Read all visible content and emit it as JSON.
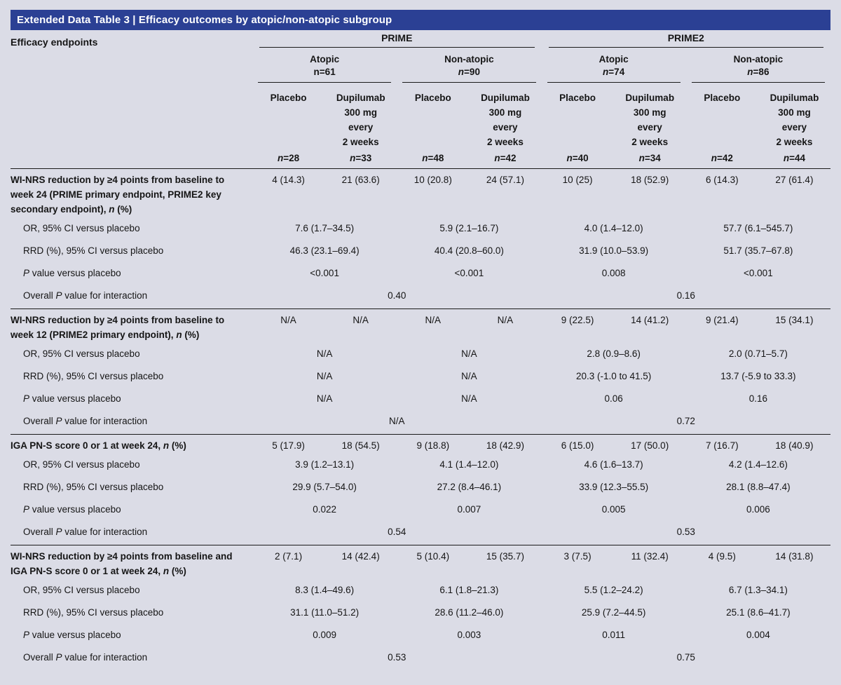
{
  "title_bar": {
    "text": "Extended Data Table 3 | Efficacy outcomes by atopic/non-atopic subgroup",
    "background_color": "#2b4094",
    "text_color": "#ffffff"
  },
  "page_background_color": "#dbdce6",
  "header": {
    "endpoint_col": "Efficacy endpoints",
    "trials": [
      {
        "name": "PRIME"
      },
      {
        "name": "PRIME2"
      }
    ],
    "subgroups": [
      {
        "label": "Atopic",
        "n_sym": "n",
        "n_val": "=61"
      },
      {
        "label": "Non-atopic",
        "n_sym": "n",
        "n_val": "=90"
      },
      {
        "label": "Atopic",
        "n_sym": "n",
        "n_val": "=74"
      },
      {
        "label": "Non-atopic",
        "n_sym": "n",
        "n_val": "=86"
      }
    ],
    "arms": [
      {
        "lines": [
          "Placebo"
        ],
        "n_sym": "n",
        "n_val": "=28"
      },
      {
        "lines": [
          "Dupilumab",
          "300 mg",
          "every",
          "2 weeks"
        ],
        "n_sym": "n",
        "n_val": "=33"
      },
      {
        "lines": [
          "Placebo"
        ],
        "n_sym": "n",
        "n_val": "=48"
      },
      {
        "lines": [
          "Dupilumab",
          "300 mg",
          "every",
          "2 weeks"
        ],
        "n_sym": "n",
        "n_val": "=42"
      },
      {
        "lines": [
          "Placebo"
        ],
        "n_sym": "n",
        "n_val": "=40"
      },
      {
        "lines": [
          "Dupilumab",
          "300 mg",
          "every",
          "2 weeks"
        ],
        "n_sym": "n",
        "n_val": "=34"
      },
      {
        "lines": [
          "Placebo"
        ],
        "n_sym": "n",
        "n_val": "=42"
      },
      {
        "lines": [
          "Dupilumab",
          "300 mg",
          "every",
          "2 weeks"
        ],
        "n_sym": "n",
        "n_val": "=44"
      }
    ]
  },
  "row_labels": {
    "or": "OR, 95% CI versus placebo",
    "rrd": "RRD (%), 95% CI versus placebo",
    "p_italic": "P",
    "p_rest": " value versus placebo",
    "overall_pre": "Overall ",
    "overall_italic": "P",
    "overall_post": " value for interaction"
  },
  "sections": [
    {
      "label_pre": "WI-NRS reduction by ≥4 points from baseline to week 24 (PRIME primary endpoint, PRIME2 key secondary endpoint), ",
      "label_italic": "n",
      "label_post": " (%)",
      "counts": [
        "4 (14.3)",
        "21 (63.6)",
        "10 (20.8)",
        "24 (57.1)",
        "10 (25)",
        "18 (52.9)",
        "6 (14.3)",
        "27 (61.4)"
      ],
      "or": [
        "7.6 (1.7–34.5)",
        "5.9 (2.1–16.7)",
        "4.0 (1.4–12.0)",
        "57.7 (6.1–545.7)"
      ],
      "rrd": [
        "46.3 (23.1–69.4)",
        "40.4 (20.8–60.0)",
        "31.9 (10.0–53.9)",
        "51.7 (35.7–67.8)"
      ],
      "p": [
        "<0.001",
        "<0.001",
        "0.008",
        "<0.001"
      ],
      "overall": [
        "0.40",
        "0.16"
      ]
    },
    {
      "label_pre": "WI-NRS reduction by ≥4 points from baseline to week 12 (PRIME2 primary endpoint), ",
      "label_italic": "n",
      "label_post": " (%)",
      "counts": [
        "N/A",
        "N/A",
        "N/A",
        "N/A",
        "9 (22.5)",
        "14 (41.2)",
        "9 (21.4)",
        "15 (34.1)"
      ],
      "or": [
        "N/A",
        "N/A",
        "2.8 (0.9–8.6)",
        "2.0 (0.71–5.7)"
      ],
      "rrd": [
        "N/A",
        "N/A",
        "20.3 (-1.0 to 41.5)",
        "13.7 (-5.9 to 33.3)"
      ],
      "p": [
        "N/A",
        "N/A",
        "0.06",
        "0.16"
      ],
      "overall": [
        "N/A",
        "0.72"
      ]
    },
    {
      "label_pre": "IGA PN-S score 0 or 1 at week 24, ",
      "label_italic": "n",
      "label_post": " (%)",
      "counts": [
        "5 (17.9)",
        "18 (54.5)",
        "9 (18.8)",
        "18 (42.9)",
        "6 (15.0)",
        "17 (50.0)",
        "7 (16.7)",
        "18 (40.9)"
      ],
      "or": [
        "3.9 (1.2–13.1)",
        "4.1 (1.4–12.0)",
        "4.6 (1.6–13.7)",
        "4.2 (1.4–12.6)"
      ],
      "rrd": [
        "29.9 (5.7–54.0)",
        "27.2 (8.4–46.1)",
        "33.9 (12.3–55.5)",
        "28.1 (8.8–47.4)"
      ],
      "p": [
        "0.022",
        "0.007",
        "0.005",
        "0.006"
      ],
      "overall": [
        "0.54",
        "0.53"
      ]
    },
    {
      "label_pre": "WI-NRS reduction by ≥4 points from baseline and IGA PN-S score 0 or 1 at week 24, ",
      "label_italic": "n",
      "label_post": " (%)",
      "counts": [
        "2 (7.1)",
        "14 (42.4)",
        "5 (10.4)",
        "15 (35.7)",
        "3 (7.5)",
        "11 (32.4)",
        "4 (9.5)",
        "14 (31.8)"
      ],
      "or": [
        "8.3 (1.4–49.6)",
        "6.1 (1.8–21.3)",
        "5.5 (1.2–24.2)",
        "6.7 (1.3–34.1)"
      ],
      "rrd": [
        "31.1 (11.0–51.2)",
        "28.6 (11.2–46.0)",
        "25.9 (7.2–44.5)",
        "25.1 (8.6–41.7)"
      ],
      "p": [
        "0.009",
        "0.003",
        "0.011",
        "0.004"
      ],
      "overall": [
        "0.53",
        "0.75"
      ]
    }
  ]
}
